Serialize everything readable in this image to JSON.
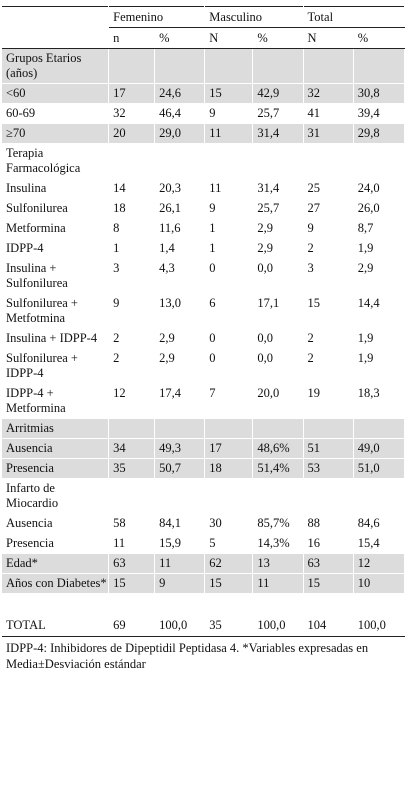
{
  "headers": {
    "groups": [
      "Femenino",
      "Masculino",
      "Total"
    ],
    "sub": [
      "n",
      "%",
      "N",
      "%",
      "N",
      "%"
    ]
  },
  "rows": [
    {
      "label": "Grupos Etarios (años)",
      "values": [
        "",
        "",
        "",
        "",
        "",
        ""
      ],
      "shade": true,
      "section": true
    },
    {
      "label": "<60",
      "values": [
        "17",
        "24,6",
        "15",
        "42,9",
        "32",
        "30,8"
      ],
      "shade": true
    },
    {
      "label": "60-69",
      "values": [
        "32",
        "46,4",
        "9",
        "25,7",
        "41",
        "39,4"
      ],
      "shade": false
    },
    {
      "label": "≥70",
      "values": [
        "20",
        "29,0",
        "11",
        "31,4",
        "31",
        "29,8"
      ],
      "shade": true
    },
    {
      "label": "Terapia Farmacológica",
      "values": [
        "",
        "",
        "",
        "",
        "",
        ""
      ],
      "shade": false,
      "section": true
    },
    {
      "label": "Insulina",
      "values": [
        "14",
        "20,3",
        "11",
        "31,4",
        "25",
        "24,0"
      ],
      "shade": false
    },
    {
      "label": "Sulfonilurea",
      "values": [
        "18",
        "26,1",
        "9",
        "25,7",
        "27",
        "26,0"
      ],
      "shade": false
    },
    {
      "label": "Metformina",
      "values": [
        "8",
        "11,6",
        "1",
        "2,9",
        "9",
        "8,7"
      ],
      "shade": false
    },
    {
      "label": "IDPP-4",
      "values": [
        "1",
        "1,4",
        "1",
        "2,9",
        "2",
        "1,9"
      ],
      "shade": false
    },
    {
      "label": "Insulina + Sulfonilurea",
      "values": [
        "3",
        "4,3",
        "0",
        "0,0",
        "3",
        "2,9"
      ],
      "shade": false
    },
    {
      "label": "Sulfonilurea + Metfotmina",
      "values": [
        "9",
        "13,0",
        "6",
        "17,1",
        "15",
        "14,4"
      ],
      "shade": false
    },
    {
      "label": "Insulina + IDPP-4",
      "values": [
        "2",
        "2,9",
        "0",
        "0,0",
        "2",
        "1,9"
      ],
      "shade": false
    },
    {
      "label": "Sulfonilurea + IDPP-4",
      "values": [
        "2",
        "2,9",
        "0",
        "0,0",
        "2",
        "1,9"
      ],
      "shade": false
    },
    {
      "label": "IDPP-4 + Metformina",
      "values": [
        "12",
        "17,4",
        "7",
        "20,0",
        "19",
        "18,3"
      ],
      "shade": false
    },
    {
      "label": "Arritmias",
      "values": [
        "",
        "",
        "",
        "",
        "",
        ""
      ],
      "shade": true,
      "section": true
    },
    {
      "label": "Ausencia",
      "values": [
        "34",
        "49,3",
        "17",
        "48,6%",
        "51",
        "49,0"
      ],
      "shade": true
    },
    {
      "label": "Presencia",
      "values": [
        "35",
        "50,7",
        "18",
        "51,4%",
        "53",
        "51,0"
      ],
      "shade": true
    },
    {
      "label": "Infarto de Miocardio",
      "values": [
        "",
        "",
        "",
        "",
        "",
        ""
      ],
      "shade": false,
      "section": true
    },
    {
      "label": "Ausencia",
      "values": [
        "58",
        "84,1",
        "30",
        "85,7%",
        "88",
        "84,6"
      ],
      "shade": false
    },
    {
      "label": "Presencia",
      "values": [
        "11",
        "15,9",
        "5",
        "14,3%",
        "16",
        "15,4"
      ],
      "shade": false
    },
    {
      "label": "Edad*",
      "values": [
        "63",
        "11",
        "62",
        "13",
        "63",
        "12"
      ],
      "shade": true
    },
    {
      "label": "Años con Diabetes*",
      "values": [
        "15",
        "9",
        "15",
        "11",
        "15",
        "10"
      ],
      "shade": true
    }
  ],
  "total": {
    "label": "TOTAL",
    "values": [
      "69",
      "100,0",
      "35",
      "100,0",
      "104",
      "100,0"
    ]
  },
  "footnote": "IDPP-4: Inhibidores de Dipeptidil Peptidasa 4. *Variables expresadas en Media±Desviación estándar"
}
